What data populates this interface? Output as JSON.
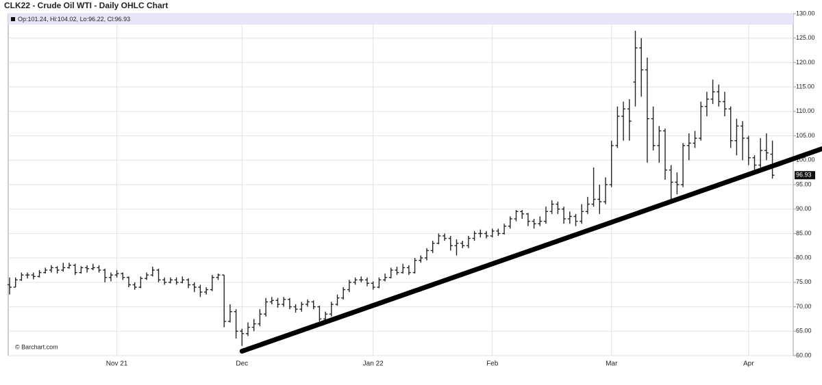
{
  "chart_data": {
    "type": "ohlc",
    "title": "CLK22 - Crude Oil WTI - Daily OHLC Chart",
    "legend_text": "Op:101.24, Hi:104.02, Lo:96.22, Cl:96.93",
    "watermark": "© Barchart.com",
    "color": "#222222",
    "categories": [
      null,
      null,
      null,
      null,
      null,
      null,
      null,
      null,
      null,
      null,
      null,
      null,
      null,
      null,
      null,
      null,
      null,
      null,
      "Nov 21",
      null,
      null,
      null,
      null,
      null,
      null,
      null,
      null,
      null,
      null,
      null,
      null,
      null,
      null,
      null,
      null,
      null,
      null,
      null,
      null,
      "Dec",
      null,
      null,
      null,
      null,
      null,
      null,
      null,
      null,
      null,
      null,
      null,
      null,
      null,
      null,
      null,
      null,
      null,
      null,
      null,
      null,
      null,
      "Jan 22",
      null,
      null,
      null,
      null,
      null,
      null,
      null,
      null,
      null,
      null,
      null,
      null,
      null,
      null,
      null,
      null,
      null,
      null,
      null,
      "Feb",
      null,
      null,
      null,
      null,
      null,
      null,
      null,
      null,
      null,
      null,
      null,
      null,
      null,
      null,
      null,
      null,
      null,
      null,
      null,
      "Mar",
      null,
      null,
      null,
      null,
      null,
      null,
      null,
      null,
      null,
      null,
      null,
      null,
      null,
      null,
      null,
      null,
      null,
      null,
      null,
      null,
      null,
      null,
      "Apr",
      null,
      null,
      null,
      null
    ],
    "open": [
      74.5,
      74,
      75.5,
      76.5,
      76.5,
      76.2,
      77,
      77.5,
      78,
      77.5,
      78,
      78.5,
      77,
      78,
      77.8,
      78,
      77.5,
      76,
      76.5,
      76.8,
      76,
      74.5,
      74,
      75.8,
      76.5,
      77.5,
      75.5,
      75,
      75.5,
      75,
      75.5,
      74.5,
      74,
      73,
      73.5,
      76,
      76.5,
      67,
      69,
      65,
      64.5,
      65.8,
      66.5,
      68.5,
      71,
      71.3,
      70.5,
      71.5,
      70,
      69.5,
      70.5,
      71,
      70,
      67.5,
      68.5,
      70.5,
      71.8,
      73.5,
      75,
      75.5,
      75.5,
      74.8,
      74,
      75.5,
      76,
      77.5,
      77,
      78,
      77,
      79.5,
      80,
      81.5,
      83,
      84.5,
      84,
      82.5,
      83,
      82.5,
      84,
      85,
      85,
      84.5,
      85.5,
      85,
      86.5,
      88,
      89.5,
      89,
      87.5,
      87,
      87.5,
      89.5,
      91,
      90,
      88,
      88.5,
      87.5,
      89.5,
      91,
      92,
      91.5,
      95,
      103,
      109,
      110.5,
      116,
      123,
      118.5,
      108.5,
      103,
      106,
      98,
      95.5,
      95,
      103,
      103.5,
      104.5,
      111,
      112.5,
      114,
      112,
      110.5,
      104,
      107,
      104.5,
      100.5,
      99,
      102,
      101.24
    ],
    "high": [
      76,
      76,
      77,
      77,
      77,
      77.5,
      78,
      78.5,
      78.3,
      79,
      79,
      78.8,
      78.3,
      78.5,
      78.8,
      78.5,
      77.8,
      77,
      77.5,
      77,
      76.2,
      75,
      76.2,
      77,
      78.2,
      77.8,
      76,
      76,
      76,
      76.2,
      75.8,
      75,
      74.5,
      74,
      76.5,
      76.8,
      76.5,
      70.5,
      69.5,
      65.5,
      66.8,
      67.5,
      69.5,
      71.8,
      72,
      71.8,
      72,
      71.8,
      70.5,
      71,
      71.5,
      71.3,
      70.2,
      69,
      71,
      72.5,
      74,
      75.5,
      76,
      76.2,
      76,
      75.2,
      76,
      76.8,
      78,
      78.2,
      78.8,
      78.5,
      80,
      80.5,
      82,
      83.5,
      85,
      85,
      84.5,
      83.8,
      83.5,
      84.5,
      85.5,
      85.8,
      85.5,
      86,
      86,
      87,
      88.5,
      89.8,
      89.8,
      89.2,
      88,
      88.5,
      90.5,
      91.8,
      91.5,
      90.5,
      89.5,
      89,
      91,
      92.5,
      98.5,
      95,
      96.5,
      104,
      111,
      112,
      112.5,
      126.5,
      125,
      121,
      111,
      107,
      106.5,
      99,
      97.5,
      103.5,
      105.5,
      106,
      112,
      114,
      116.5,
      115.5,
      114,
      111,
      108.5,
      108,
      105,
      101,
      104.5,
      105.5,
      104.02
    ],
    "low": [
      72.5,
      74,
      75.3,
      75.8,
      75.6,
      76,
      76.8,
      77,
      76.8,
      77.2,
      77.8,
      76.5,
      76.8,
      77,
      77.5,
      77,
      75,
      75.2,
      76,
      75.5,
      74,
      73.5,
      73.8,
      75.5,
      76.2,
      75,
      74.5,
      74.8,
      74.5,
      74.8,
      73.8,
      73,
      72,
      72.5,
      73.2,
      75.5,
      65.8,
      66.8,
      63.5,
      62,
      64,
      65,
      66,
      68,
      70.5,
      69.8,
      70,
      69.5,
      68.8,
      69,
      70,
      69.5,
      67,
      67,
      68,
      70.2,
      71.5,
      73,
      74.5,
      75,
      74.2,
      73.5,
      73.8,
      75.2,
      75.8,
      76.5,
      76.8,
      76.5,
      76.8,
      79,
      79.5,
      81,
      82.8,
      83.5,
      81.5,
      80.5,
      82,
      82,
      83.5,
      84.2,
      84,
      84.2,
      84.5,
      84.8,
      86,
      87.5,
      88,
      86.5,
      86,
      86.5,
      87,
      89,
      89,
      87,
      87,
      86.5,
      87,
      89,
      90.5,
      89,
      91,
      94.5,
      102.5,
      104,
      104,
      111,
      113,
      99.5,
      102,
      99.5,
      96,
      92,
      93,
      94.5,
      100,
      102.5,
      104,
      109,
      111.5,
      111,
      109,
      102.5,
      101,
      100,
      99,
      98,
      98.5,
      100,
      96.22
    ],
    "close": [
      74,
      75.5,
      76.5,
      76.5,
      76.2,
      77,
      77.5,
      78,
      77.5,
      78,
      78.5,
      77,
      78,
      77.8,
      78,
      77.5,
      76,
      76.5,
      76.8,
      76,
      74.5,
      74,
      75.8,
      76.5,
      77.5,
      75.5,
      75,
      75.5,
      75,
      75.5,
      74.5,
      74,
      73,
      73.5,
      76,
      76.5,
      67,
      69,
      65,
      64.5,
      65.8,
      66.5,
      68.5,
      71,
      71.3,
      70.5,
      71.5,
      70,
      69.5,
      70.5,
      71,
      70,
      67.5,
      68.5,
      70.5,
      71.8,
      73.5,
      75,
      75.5,
      75.5,
      74.8,
      74,
      75.5,
      76,
      77.5,
      77,
      78,
      77,
      79.5,
      80,
      81.5,
      83,
      84.5,
      84,
      82.5,
      83,
      82.5,
      84,
      85,
      85,
      84.5,
      85.5,
      85,
      86.5,
      88,
      89.5,
      89,
      87.5,
      87,
      87.5,
      89.5,
      91,
      90,
      88,
      88.5,
      87.5,
      89.5,
      91,
      92,
      91.5,
      95,
      103,
      109,
      110.5,
      108,
      123,
      118.5,
      108.5,
      103,
      106,
      98,
      95.5,
      95,
      103,
      103.5,
      104.5,
      111,
      112.5,
      114,
      112,
      110.5,
      104,
      107,
      104.5,
      100.5,
      99,
      102,
      101.5,
      96.93
    ],
    "ylim": [
      60,
      130
    ],
    "yticks": [
      {
        "value": 60,
        "label": "60.00"
      },
      {
        "value": 65,
        "label": "65.00"
      },
      {
        "value": 70,
        "label": "70.00"
      },
      {
        "value": 75,
        "label": "75.00"
      },
      {
        "value": 80,
        "label": "80.00"
      },
      {
        "value": 85,
        "label": "85.00"
      },
      {
        "value": 90,
        "label": "90.00"
      },
      {
        "value": 95,
        "label": "95.00"
      },
      {
        "value": 100,
        "label": "100.00"
      },
      {
        "value": 105,
        "label": "105.00"
      },
      {
        "value": 110,
        "label": "110.00"
      },
      {
        "value": 115,
        "label": "115.00"
      },
      {
        "value": 120,
        "label": "120.00"
      },
      {
        "value": 125,
        "label": "125.00"
      },
      {
        "value": 130,
        "label": "130.00"
      }
    ],
    "grid": true,
    "trendline": {
      "x": [
        39,
        128
      ],
      "values": [
        60.9,
        98.8
      ],
      "color": "#000000"
    }
  }
}
